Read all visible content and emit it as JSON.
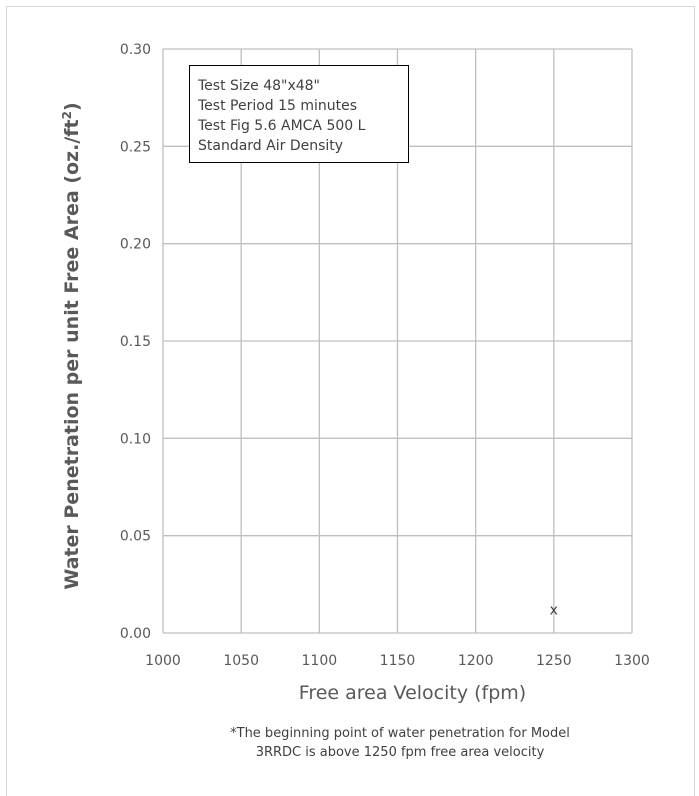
{
  "chart_data": {
    "type": "scatter",
    "title": "",
    "xlabel": "Free area Velocity (fpm)",
    "ylabel_main": "Water Penetration per unit Free Area (oz./ft",
    "ylabel_sup": "2",
    "ylabel_close": ")",
    "xlim": [
      1000,
      1300
    ],
    "ylim": [
      0,
      0.3
    ],
    "x_ticks": [
      1000,
      1050,
      1100,
      1150,
      1200,
      1250,
      1300
    ],
    "x_tick_labels": [
      "1000",
      "1050",
      "1100",
      "1150",
      "1200",
      "1250",
      "1300"
    ],
    "y_ticks": [
      0,
      0.05,
      0.1,
      0.15,
      0.2,
      0.25,
      0.3
    ],
    "y_tick_labels": [
      "0.00",
      "0.05",
      "0.10",
      "0.15",
      "0.20",
      "0.25",
      "0.30"
    ],
    "grid": true,
    "points": [
      {
        "x": 1250,
        "y": 0.012,
        "marker": "x"
      }
    ]
  },
  "legend_box": {
    "lines": [
      "Test Size 48\"x48\"",
      "Test Period 15 minutes",
      "Test Fig 5.6 AMCA 500 L",
      "Standard Air Density"
    ]
  },
  "footnote": {
    "line1": "*The beginning point of water penetration for Model",
    "line2": "3RRDC is above 1250 fpm free area velocity"
  },
  "colors": {
    "grid": "#bfbfbf",
    "text": "#595959"
  }
}
